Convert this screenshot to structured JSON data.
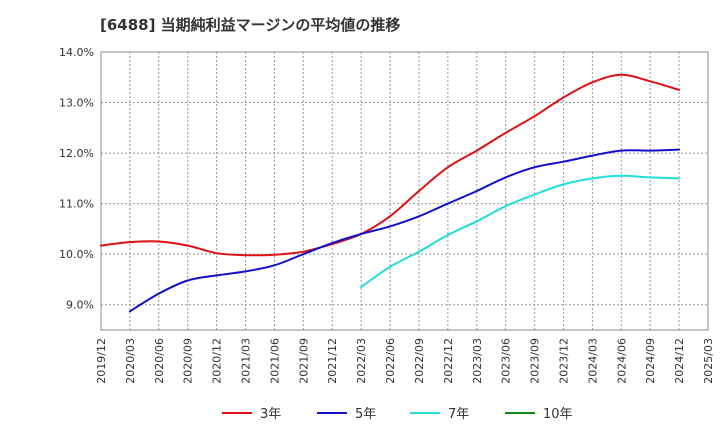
{
  "chart_data": {
    "type": "line",
    "title": "[6488]  当期純利益マージンの平均値の推移",
    "xlabel": "",
    "ylabel": "",
    "ylim": [
      8.5,
      14.0
    ],
    "yticks": [
      9.0,
      10.0,
      11.0,
      12.0,
      13.0,
      14.0
    ],
    "ytick_labels": [
      "9.0%",
      "10.0%",
      "11.0%",
      "12.0%",
      "13.0%",
      "14.0%"
    ],
    "x_tick_labels": [
      "2019/12",
      "2020/03",
      "2020/06",
      "2020/09",
      "2020/12",
      "2021/03",
      "2021/06",
      "2021/09",
      "2021/12",
      "2022/03",
      "2022/06",
      "2022/09",
      "2022/12",
      "2023/03",
      "2023/06",
      "2023/09",
      "2023/12",
      "2024/03",
      "2024/06",
      "2024/09",
      "2024/12",
      "2025/03"
    ],
    "grid": true,
    "legend_position": "bottom",
    "series": [
      {
        "name": "3年",
        "color": "#dd1111",
        "start_index": 0,
        "values": [
          10.17,
          10.24,
          10.25,
          10.17,
          10.02,
          9.98,
          9.99,
          10.05,
          10.2,
          10.4,
          10.75,
          11.25,
          11.72,
          12.05,
          12.4,
          12.73,
          13.1,
          13.4,
          13.55,
          13.42,
          13.25
        ]
      },
      {
        "name": "5年",
        "color": "#1111cc",
        "start_index": 1,
        "values": [
          8.87,
          9.22,
          9.48,
          9.58,
          9.66,
          9.78,
          10.0,
          10.22,
          10.4,
          10.55,
          10.75,
          11.0,
          11.25,
          11.52,
          11.72,
          11.83,
          11.95,
          12.05,
          12.05,
          12.07
        ]
      },
      {
        "name": "7年",
        "color": "#22dddd",
        "start_index": 9,
        "values": [
          9.35,
          9.75,
          10.05,
          10.38,
          10.65,
          10.95,
          11.18,
          11.38,
          11.5,
          11.55,
          11.52,
          11.5
        ]
      },
      {
        "name": "10年",
        "color": "#118811",
        "start_index": 0,
        "values": []
      }
    ]
  }
}
